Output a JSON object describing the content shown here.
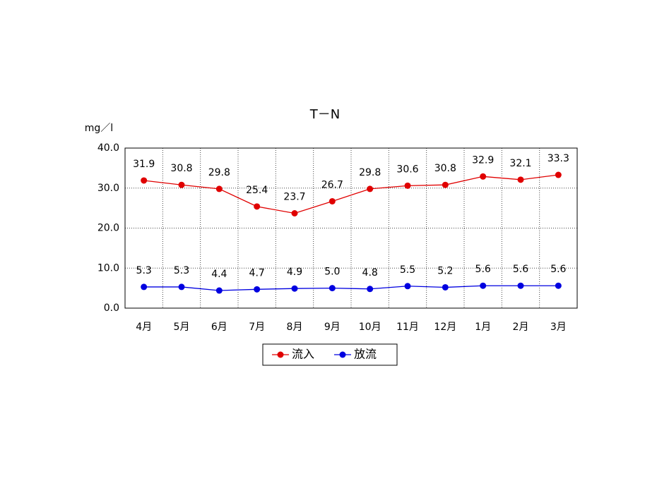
{
  "chart_data": {
    "type": "line",
    "title": "T－N",
    "y_label": "mg／l",
    "categories": [
      "4月",
      "5月",
      "6月",
      "7月",
      "8月",
      "9月",
      "10月",
      "11月",
      "12月",
      "1月",
      "2月",
      "3月"
    ],
    "series": [
      {
        "name": "流入",
        "color": "#e00000",
        "values": [
          31.9,
          30.8,
          29.8,
          25.4,
          23.7,
          26.7,
          29.8,
          30.6,
          30.8,
          32.9,
          32.1,
          33.3
        ],
        "value_labels": [
          "31.9",
          "30.8",
          "29.8",
          "25.4",
          "23.7",
          "26.7",
          "29.8",
          "30.6",
          "30.8",
          "32.9",
          "32.1",
          "33.3"
        ]
      },
      {
        "name": "放流",
        "color": "#0000e0",
        "values": [
          5.3,
          5.3,
          4.4,
          4.7,
          4.9,
          5.0,
          4.8,
          5.5,
          5.2,
          5.6,
          5.6,
          5.6
        ],
        "value_labels": [
          "5.3",
          "5.3",
          "4.4",
          "4.7",
          "4.9",
          "5.0",
          "4.8",
          "5.5",
          "5.2",
          "5.6",
          "5.6",
          "5.6"
        ]
      }
    ],
    "ylim": [
      0,
      40
    ],
    "yticks": [
      {
        "value": 0,
        "label": "0.0"
      },
      {
        "value": 10,
        "label": "10.0"
      },
      {
        "value": 20,
        "label": "20.0"
      },
      {
        "value": 30,
        "label": "30.0"
      },
      {
        "value": 40,
        "label": "40.0"
      }
    ],
    "grid": true,
    "legend": "bottom"
  }
}
